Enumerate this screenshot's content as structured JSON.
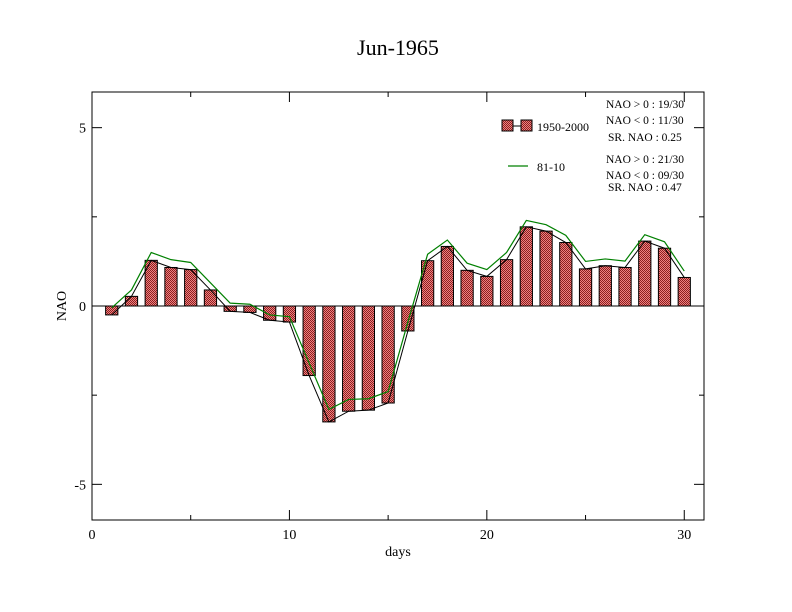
{
  "chart_data": {
    "type": "bar",
    "title": "Jun-1965",
    "xlabel": "days",
    "ylabel": "NAO",
    "xlim": [
      0,
      31
    ],
    "ylim": [
      -6,
      6
    ],
    "xticks": [
      0,
      10,
      20,
      30
    ],
    "yticks": [
      -5,
      0,
      5
    ],
    "x": [
      1,
      2,
      3,
      4,
      5,
      6,
      7,
      8,
      9,
      10,
      11,
      12,
      13,
      14,
      15,
      16,
      17,
      18,
      19,
      20,
      21,
      22,
      23,
      24,
      25,
      26,
      27,
      28,
      29,
      30
    ],
    "series": [
      {
        "name": "1950-2000",
        "kind": "bar",
        "color": "#f08080",
        "values": [
          -0.25,
          0.27,
          1.28,
          1.08,
          1.02,
          0.45,
          -0.15,
          -0.18,
          -0.4,
          -0.45,
          -1.95,
          -3.25,
          -2.95,
          -2.92,
          -2.72,
          -0.7,
          1.27,
          1.67,
          1.0,
          0.83,
          1.3,
          2.22,
          2.1,
          1.78,
          1.04,
          1.13,
          1.08,
          1.82,
          1.62,
          0.8
        ]
      },
      {
        "name": "81-10",
        "kind": "line",
        "color": "#008000",
        "values": [
          -0.05,
          0.45,
          1.5,
          1.3,
          1.22,
          0.65,
          0.08,
          0.05,
          -0.25,
          -0.3,
          -1.6,
          -2.9,
          -2.62,
          -2.6,
          -2.4,
          -0.45,
          1.45,
          1.85,
          1.2,
          1.02,
          1.5,
          2.4,
          2.28,
          1.98,
          1.25,
          1.32,
          1.26,
          2.0,
          1.8,
          0.98
        ]
      }
    ],
    "legend": {
      "placement": "top-right",
      "entries": [
        {
          "label": "1950-2000",
          "stats": [
            "NAO > 0 : 19/30",
            "NAO < 0 : 11/30",
            "SR. NAO : 0.25"
          ]
        },
        {
          "label": "81-10",
          "stats": [
            "NAO > 0 : 21/30",
            "NAO < 0 : 09/30",
            "SR. NAO : 0.47"
          ]
        }
      ]
    },
    "grid": false
  }
}
